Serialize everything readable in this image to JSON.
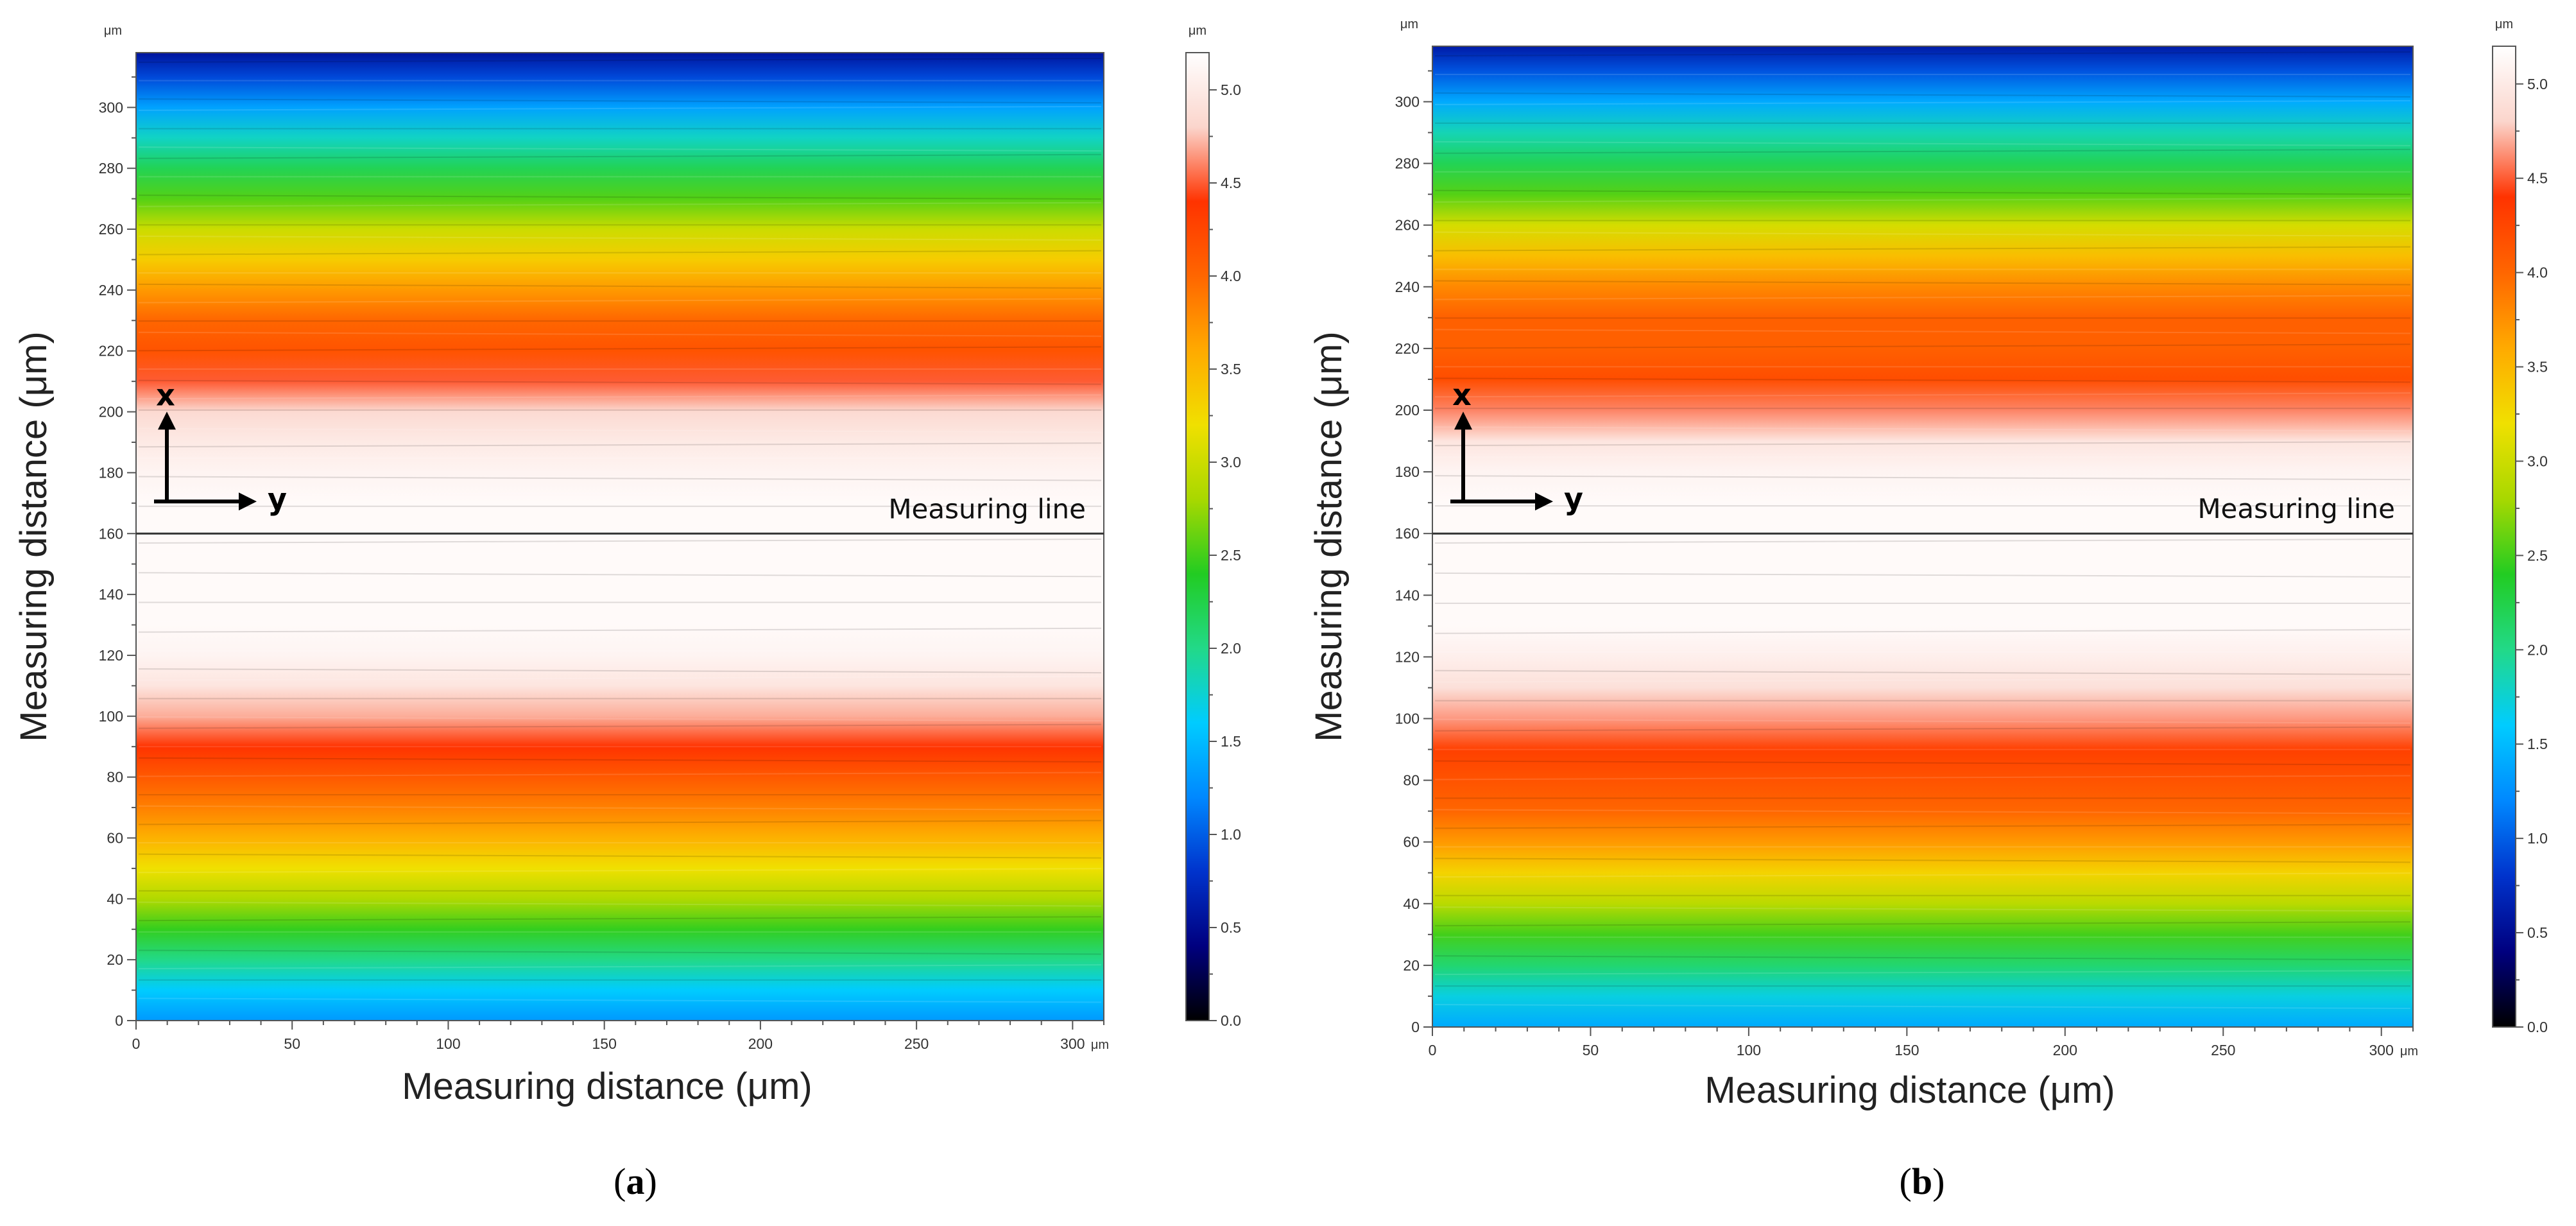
{
  "chart_data": [
    {
      "type": "heatmap",
      "panel_label_open": "(",
      "panel_label_letter": "a",
      "panel_label_close": ")",
      "xlabel": "Measuring distance (μm)",
      "ylabel": "Measuring distance (μm)",
      "unit_x": "μm",
      "unit_y": "μm",
      "unit_colorbar": "μm",
      "xlim": [
        0,
        310
      ],
      "ylim": [
        0,
        318
      ],
      "x_ticks": [
        "0",
        "50",
        "100",
        "150",
        "200",
        "250",
        "300"
      ],
      "y_ticks": [
        "0",
        "20",
        "40",
        "60",
        "80",
        "100",
        "120",
        "140",
        "160",
        "180",
        "200",
        "220",
        "240",
        "260",
        "280",
        "300"
      ],
      "colorbar_ticks": [
        "0.0",
        "0.5",
        "1.0",
        "1.5",
        "2.0",
        "2.5",
        "3.0",
        "3.5",
        "4.0",
        "4.5",
        "5.0"
      ],
      "colorbar_range": [
        0.0,
        5.2
      ],
      "annotation_label": "Measuring line",
      "measuring_line_y": 160,
      "axis_x_letter": "x",
      "axis_y_letter": "y",
      "height_profile_y": [
        0,
        10,
        20,
        30,
        40,
        50,
        60,
        70,
        80,
        90,
        100,
        110,
        120,
        130,
        140,
        150,
        160,
        170,
        180,
        190,
        200,
        210,
        220,
        230,
        240,
        250,
        260,
        270,
        280,
        290,
        300,
        310,
        318
      ],
      "height_profile_value": [
        1.3,
        1.6,
        2.0,
        2.45,
        2.85,
        3.2,
        3.55,
        3.85,
        4.1,
        4.4,
        4.7,
        4.95,
        5.1,
        5.15,
        5.15,
        5.15,
        5.15,
        5.15,
        5.1,
        5.0,
        4.85,
        4.5,
        4.15,
        4.0,
        3.7,
        3.35,
        3.0,
        2.55,
        2.2,
        1.8,
        1.35,
        0.9,
        0.55
      ]
    },
    {
      "type": "heatmap",
      "panel_label_open": "(",
      "panel_label_letter": "b",
      "panel_label_close": ")",
      "xlabel": "Measuring distance (μm)",
      "ylabel": "Measuring distance (μm)",
      "unit_x": "μm",
      "unit_y": "μm",
      "unit_colorbar": "μm",
      "xlim": [
        0,
        310
      ],
      "ylim": [
        0,
        318
      ],
      "x_ticks": [
        "0",
        "50",
        "100",
        "150",
        "200",
        "250",
        "300"
      ],
      "y_ticks": [
        "0",
        "20",
        "40",
        "60",
        "80",
        "100",
        "120",
        "140",
        "160",
        "180",
        "200",
        "220",
        "240",
        "260",
        "280",
        "300"
      ],
      "colorbar_ticks": [
        "0.0",
        "0.5",
        "1.0",
        "1.5",
        "2.0",
        "2.5",
        "3.0",
        "3.5",
        "4.0",
        "4.5",
        "5.0"
      ],
      "colorbar_range": [
        0.0,
        5.2
      ],
      "annotation_label": "Measuring line",
      "measuring_line_y": 160,
      "axis_x_letter": "x",
      "axis_y_letter": "y",
      "height_profile_y": [
        0,
        10,
        20,
        30,
        40,
        50,
        60,
        70,
        80,
        90,
        100,
        110,
        120,
        130,
        140,
        150,
        160,
        170,
        180,
        190,
        200,
        210,
        220,
        230,
        240,
        250,
        260,
        270,
        280,
        290,
        300,
        310,
        318
      ],
      "height_profile_value": [
        1.4,
        1.7,
        2.1,
        2.5,
        2.9,
        3.3,
        3.7,
        4.0,
        4.15,
        4.3,
        4.65,
        4.9,
        5.05,
        5.15,
        5.15,
        5.15,
        5.15,
        5.15,
        5.1,
        4.95,
        4.6,
        4.2,
        4.05,
        4.05,
        3.8,
        3.45,
        3.05,
        2.55,
        2.2,
        1.85,
        1.4,
        0.95,
        0.6
      ]
    }
  ],
  "colors": {
    "colormap": [
      "#000000",
      "#00007f",
      "#0033cc",
      "#0088ff",
      "#00ccff",
      "#22d988",
      "#22cc22",
      "#a8d800",
      "#f0e000",
      "#ffaa00",
      "#ff6600",
      "#ff3300",
      "#fbd5cc",
      "#ffffff"
    ],
    "frame": "#555555",
    "measuring_line": "#333333"
  }
}
